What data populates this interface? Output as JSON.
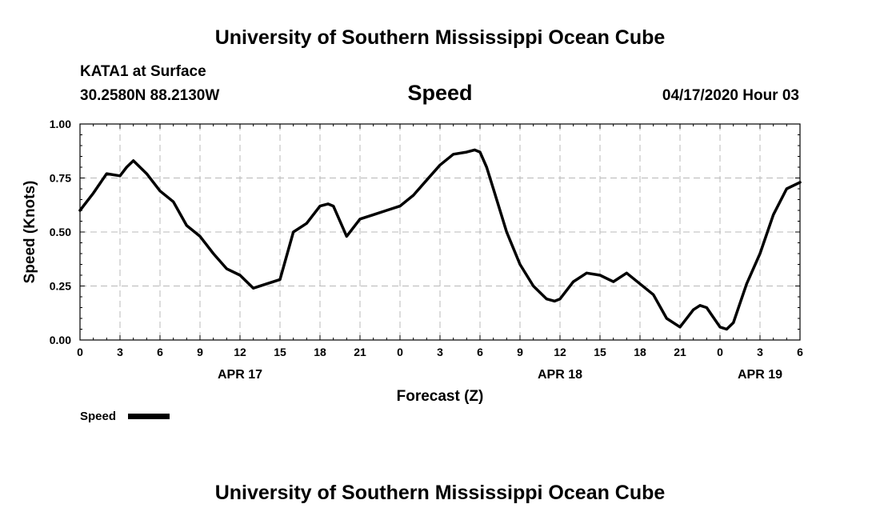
{
  "header": {
    "title_top": "University of Southern Mississippi Ocean Cube",
    "station": "KATA1 at Surface",
    "location": "30.2580N 88.2130W",
    "variable": "Speed",
    "timestamp": "04/17/2020 Hour 03",
    "title_bottom": "University of Southern Mississippi Ocean Cube"
  },
  "chart_data": {
    "type": "line",
    "title": "Speed",
    "xlabel": "Forecast (Z)",
    "ylabel": "Speed (Knots)",
    "x_unit": "hours since 04/17/2020 00Z",
    "xlim": [
      0,
      54
    ],
    "ylim": [
      0,
      1
    ],
    "grid": true,
    "legend_position": "bottom-left",
    "line_color": "#000000",
    "x_ticks": [
      {
        "x": 0,
        "label": "0"
      },
      {
        "x": 3,
        "label": "3"
      },
      {
        "x": 6,
        "label": "6"
      },
      {
        "x": 9,
        "label": "9"
      },
      {
        "x": 12,
        "label": "12"
      },
      {
        "x": 15,
        "label": "15"
      },
      {
        "x": 18,
        "label": "18"
      },
      {
        "x": 21,
        "label": "21"
      },
      {
        "x": 24,
        "label": "0"
      },
      {
        "x": 27,
        "label": "3"
      },
      {
        "x": 30,
        "label": "6"
      },
      {
        "x": 33,
        "label": "9"
      },
      {
        "x": 36,
        "label": "12"
      },
      {
        "x": 39,
        "label": "15"
      },
      {
        "x": 42,
        "label": "18"
      },
      {
        "x": 45,
        "label": "21"
      },
      {
        "x": 48,
        "label": "0"
      },
      {
        "x": 51,
        "label": "3"
      },
      {
        "x": 54,
        "label": "6"
      }
    ],
    "date_labels": [
      {
        "x": 12,
        "label": "APR 17"
      },
      {
        "x": 36,
        "label": "APR 18"
      },
      {
        "x": 51,
        "label": "APR 19"
      }
    ],
    "y_ticks": [
      {
        "y": 0,
        "label": "0.00"
      },
      {
        "y": 0.25,
        "label": "0.25"
      },
      {
        "y": 0.5,
        "label": "0.50"
      },
      {
        "y": 0.75,
        "label": "0.75"
      },
      {
        "y": 1,
        "label": "1.00"
      }
    ],
    "series": [
      {
        "name": "Speed",
        "x": [
          0,
          1,
          2,
          3,
          3.5,
          4,
          5,
          6,
          7,
          8,
          9,
          10,
          11,
          12,
          13,
          14,
          15,
          16,
          17,
          18,
          18.6,
          19,
          20,
          21,
          22,
          23,
          24,
          25,
          26,
          27,
          28,
          29,
          29.6,
          30,
          30.5,
          31,
          32,
          33,
          34,
          35,
          35.6,
          36,
          37,
          38,
          39,
          40,
          41,
          42,
          43,
          44,
          45,
          46,
          46.5,
          47,
          48,
          48.5,
          49,
          50,
          51,
          52,
          53,
          54
        ],
        "y": [
          0.6,
          0.68,
          0.77,
          0.76,
          0.8,
          0.83,
          0.77,
          0.69,
          0.64,
          0.53,
          0.48,
          0.4,
          0.33,
          0.3,
          0.24,
          0.26,
          0.28,
          0.5,
          0.54,
          0.62,
          0.63,
          0.62,
          0.48,
          0.56,
          0.58,
          0.6,
          0.62,
          0.67,
          0.74,
          0.81,
          0.86,
          0.87,
          0.88,
          0.87,
          0.8,
          0.7,
          0.5,
          0.35,
          0.25,
          0.19,
          0.18,
          0.19,
          0.27,
          0.31,
          0.3,
          0.27,
          0.31,
          0.26,
          0.21,
          0.1,
          0.06,
          0.14,
          0.16,
          0.15,
          0.06,
          0.05,
          0.08,
          0.26,
          0.4,
          0.58,
          0.7,
          0.73
        ]
      }
    ]
  },
  "legend": {
    "label": "Speed"
  }
}
